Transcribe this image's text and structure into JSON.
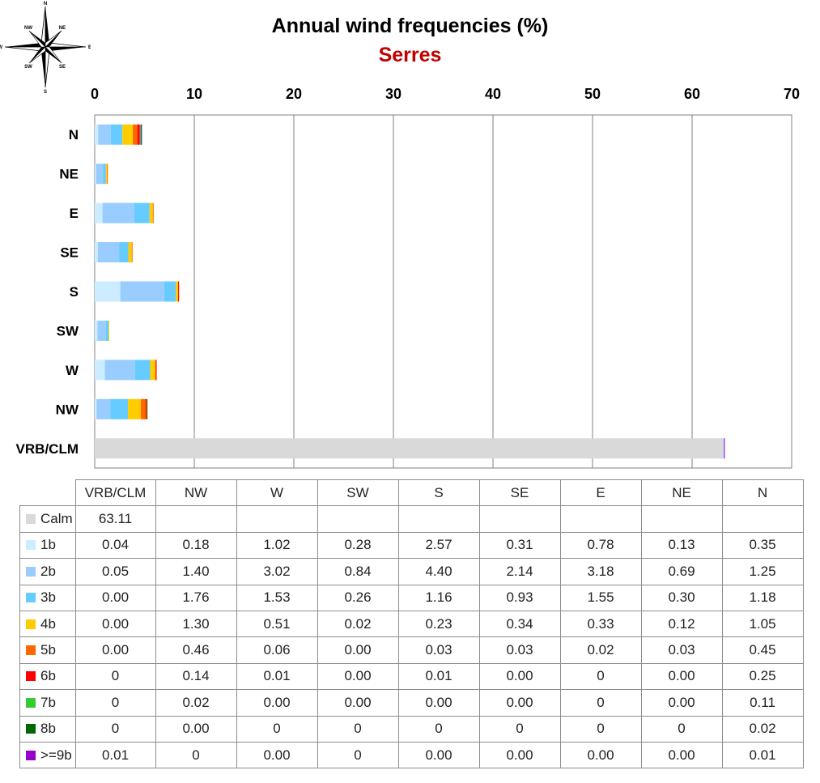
{
  "title": "Annual wind frequencies (%)",
  "subtitle": "Serres",
  "colors": {
    "title": "#000000",
    "subtitle": "#c00000",
    "grid": "#808080"
  },
  "compass_labels": [
    "N",
    "NE",
    "E",
    "SE",
    "S",
    "SW",
    "W",
    "NW"
  ],
  "chart_data": {
    "type": "bar",
    "orientation": "horizontal",
    "stacked": true,
    "categories": [
      "N",
      "NE",
      "E",
      "SE",
      "S",
      "SW",
      "W",
      "NW",
      "VRB/CLM"
    ],
    "xlim": [
      0,
      70
    ],
    "xticks": [
      0,
      10,
      20,
      30,
      40,
      50,
      60,
      70
    ],
    "x_axis_position": "top",
    "grid": true,
    "series": [
      {
        "name": "Calm",
        "color": "#d9d9d9",
        "values": [
          0,
          0,
          0,
          0,
          0,
          0,
          0,
          0,
          63.11
        ]
      },
      {
        "name": "1b",
        "color": "#ccecff",
        "values": [
          0.35,
          0.13,
          0.78,
          0.31,
          2.57,
          0.28,
          1.02,
          0.18,
          0.04
        ]
      },
      {
        "name": "2b",
        "color": "#99ccff",
        "values": [
          1.25,
          0.69,
          3.18,
          2.14,
          4.4,
          0.84,
          3.02,
          1.4,
          0.05
        ]
      },
      {
        "name": "3b",
        "color": "#66ccff",
        "values": [
          1.18,
          0.3,
          1.55,
          0.93,
          1.16,
          0.26,
          1.53,
          1.76,
          0.0
        ]
      },
      {
        "name": "4b",
        "color": "#ffcc00",
        "values": [
          1.05,
          0.12,
          0.33,
          0.34,
          0.23,
          0.02,
          0.51,
          1.3,
          0.0
        ]
      },
      {
        "name": "5b",
        "color": "#ff6600",
        "values": [
          0.45,
          0.03,
          0.02,
          0.03,
          0.03,
          0.0,
          0.06,
          0.46,
          0.0
        ]
      },
      {
        "name": "6b",
        "color": "#ff0000",
        "values": [
          0.25,
          0.0,
          0,
          0.0,
          0.01,
          0.0,
          0.01,
          0.14,
          0
        ]
      },
      {
        "name": "7b",
        "color": "#33cc33",
        "values": [
          0.11,
          0.0,
          0,
          0.0,
          0.0,
          0.0,
          0.0,
          0.02,
          0
        ]
      },
      {
        "name": "8b",
        "color": "#006600",
        "values": [
          0.02,
          0,
          0,
          0,
          0,
          0,
          0,
          0.0,
          0
        ]
      },
      {
        "name": ">=9b",
        "color": "#9900cc",
        "values": [
          0.01,
          0.0,
          0.0,
          0.0,
          0.0,
          0,
          0.0,
          0,
          0.01
        ]
      }
    ]
  },
  "table": {
    "columns": [
      "VRB/CLM",
      "NW",
      "W",
      "SW",
      "S",
      "SE",
      "E",
      "NE",
      "N"
    ],
    "rows": [
      {
        "label": "Calm",
        "color": "#d9d9d9",
        "cells": [
          "63.11",
          "",
          "",
          "",
          "",
          "",
          "",
          "",
          ""
        ]
      },
      {
        "label": "1b",
        "color": "#ccecff",
        "cells": [
          "0.04",
          "0.18",
          "1.02",
          "0.28",
          "2.57",
          "0.31",
          "0.78",
          "0.13",
          "0.35"
        ]
      },
      {
        "label": "2b",
        "color": "#99ccff",
        "cells": [
          "0.05",
          "1.40",
          "3.02",
          "0.84",
          "4.40",
          "2.14",
          "3.18",
          "0.69",
          "1.25"
        ]
      },
      {
        "label": "3b",
        "color": "#66ccff",
        "cells": [
          "0.00",
          "1.76",
          "1.53",
          "0.26",
          "1.16",
          "0.93",
          "1.55",
          "0.30",
          "1.18"
        ]
      },
      {
        "label": "4b",
        "color": "#ffcc00",
        "cells": [
          "0.00",
          "1.30",
          "0.51",
          "0.02",
          "0.23",
          "0.34",
          "0.33",
          "0.12",
          "1.05"
        ]
      },
      {
        "label": "5b",
        "color": "#ff6600",
        "cells": [
          "0.00",
          "0.46",
          "0.06",
          "0.00",
          "0.03",
          "0.03",
          "0.02",
          "0.03",
          "0.45"
        ]
      },
      {
        "label": "6b",
        "color": "#ff0000",
        "cells": [
          "0",
          "0.14",
          "0.01",
          "0.00",
          "0.01",
          "0.00",
          "0",
          "0.00",
          "0.25"
        ]
      },
      {
        "label": "7b",
        "color": "#33cc33",
        "cells": [
          "0",
          "0.02",
          "0.00",
          "0.00",
          "0.00",
          "0.00",
          "0",
          "0.00",
          "0.11"
        ]
      },
      {
        "label": "8b",
        "color": "#006600",
        "cells": [
          "0",
          "0.00",
          "0",
          "0",
          "0",
          "0",
          "0",
          "0",
          "0.02"
        ]
      },
      {
        "label": ">=9b",
        "color": "#9900cc",
        "cells": [
          "0.01",
          "0",
          "0.00",
          "0",
          "0.00",
          "0.00",
          "0.00",
          "0.00",
          "0.01"
        ]
      }
    ]
  }
}
